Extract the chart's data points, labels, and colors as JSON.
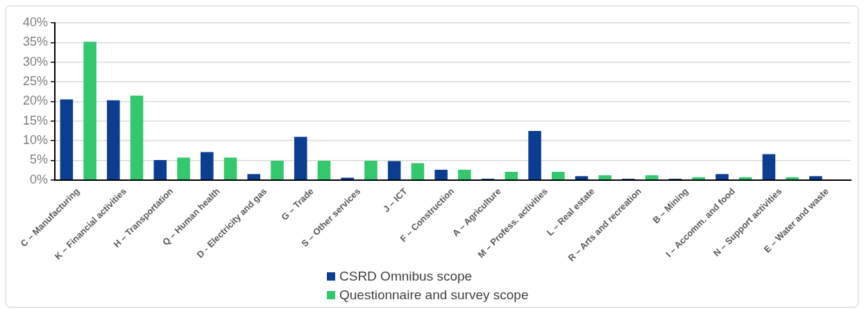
{
  "chart_data": {
    "type": "bar",
    "categories": [
      "C – Manufacturing",
      "K – Financial activities",
      "H – Transportation",
      "Q – Human health",
      "D - Electricity and gas",
      "G – Trade",
      "S – Other services",
      "J – ICT",
      "F – Construction",
      "A – Agriculture",
      "M – Profess. activities",
      "L – Real estate",
      "R – Arts and recreation",
      "B – Mining",
      "I – Accomm. and food",
      "N – Support activities",
      "E – Water and waste"
    ],
    "series": [
      {
        "name": "CSRD Omnibus scope",
        "color": "#0b3d91",
        "values": [
          20.5,
          20.3,
          5.1,
          7.1,
          1.5,
          11.0,
          0.6,
          4.8,
          2.6,
          0.3,
          12.5,
          1.0,
          0.3,
          0.3,
          1.5,
          6.6,
          1.0
        ]
      },
      {
        "name": "Questionnaire and survey scope",
        "color": "#33c76e",
        "values": [
          35.2,
          21.5,
          5.7,
          5.7,
          4.9,
          4.9,
          4.9,
          4.3,
          2.6,
          2.1,
          2.1,
          1.2,
          1.2,
          0.7,
          0.7,
          0.7,
          0
        ]
      }
    ],
    "ylim": [
      0,
      40
    ],
    "yticks": [
      {
        "value": 0,
        "label": "0%"
      },
      {
        "value": 5,
        "label": "5%"
      },
      {
        "value": 10,
        "label": "10%"
      },
      {
        "value": 15,
        "label": "15%"
      },
      {
        "value": 20,
        "label": "20%"
      },
      {
        "value": 25,
        "label": "25%"
      },
      {
        "value": 30,
        "label": "30%"
      },
      {
        "value": 35,
        "label": "35%"
      },
      {
        "value": 40,
        "label": "40%"
      }
    ],
    "grid": "y",
    "legend": "bottom"
  }
}
